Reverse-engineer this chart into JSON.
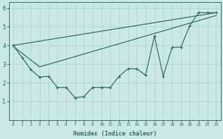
{
  "xlabel": "Humidex (Indice chaleur)",
  "ylabel": "",
  "xlim": [
    -0.5,
    23.5
  ],
  "ylim": [
    0,
    6.3
  ],
  "xticks": [
    0,
    1,
    2,
    3,
    4,
    5,
    6,
    7,
    8,
    9,
    10,
    11,
    12,
    13,
    14,
    15,
    16,
    17,
    18,
    19,
    20,
    21,
    22,
    23
  ],
  "yticks": [
    1,
    2,
    3,
    4,
    5,
    6
  ],
  "bg_color": "#cbe8e3",
  "grid_color": "#a0d4cc",
  "line_color": "#2d6e65",
  "line1_x": [
    0,
    1,
    2,
    3,
    4,
    5,
    6,
    7,
    8,
    9,
    10,
    11,
    12,
    13,
    14,
    15,
    16,
    17,
    18,
    19,
    20,
    21,
    22,
    23
  ],
  "line1_y": [
    4.0,
    3.35,
    2.7,
    2.3,
    2.35,
    1.75,
    1.75,
    1.2,
    1.25,
    1.75,
    1.75,
    1.75,
    2.35,
    2.75,
    2.75,
    2.4,
    4.5,
    2.35,
    3.9,
    3.9,
    5.05,
    5.75,
    5.75,
    5.75
  ],
  "line2_x": [
    0,
    23
  ],
  "line2_y": [
    4.0,
    5.75
  ],
  "line3_x": [
    0,
    3,
    23
  ],
  "line3_y": [
    3.95,
    2.85,
    5.6
  ]
}
